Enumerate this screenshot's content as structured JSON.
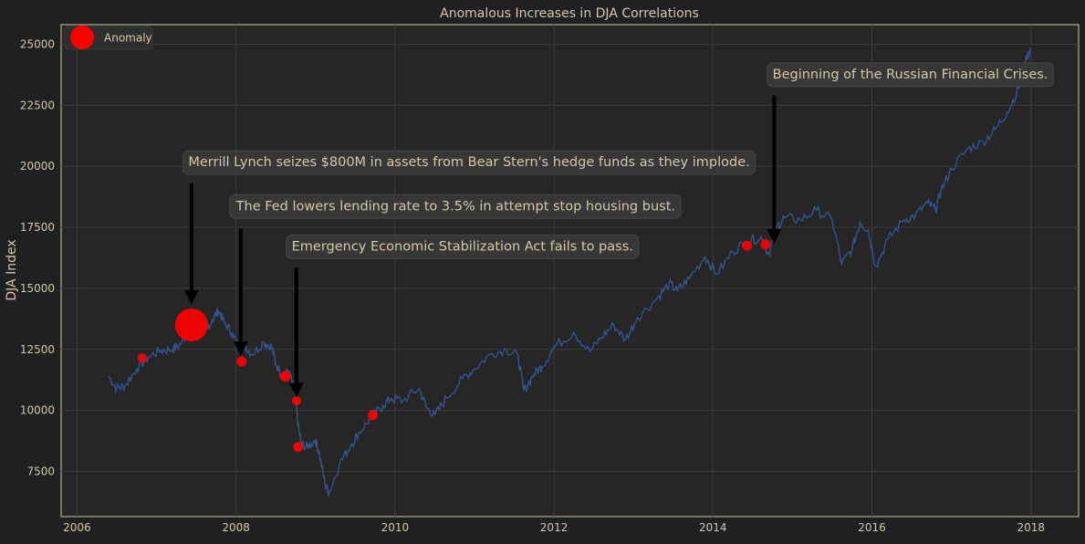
{
  "chart_data": {
    "type": "line",
    "title": "Anomalous Increases in DJA Correlations",
    "xlabel": "",
    "ylabel": "DJA Index",
    "xlim": [
      2005.8,
      2018.6
    ],
    "ylim": [
      5650,
      25800
    ],
    "x_ticks": [
      2006,
      2008,
      2010,
      2012,
      2014,
      2016,
      2018
    ],
    "y_ticks": [
      7500,
      10000,
      12500,
      15000,
      17500,
      20000,
      22500,
      25000
    ],
    "grid": true,
    "legend": {
      "position": "top-left",
      "entries": [
        "Anomaly"
      ]
    },
    "colors": {
      "background": "#1e2022",
      "plot_area": "#262626",
      "line": "#34538f",
      "anomaly": "#ff0000",
      "arrow": "#000000",
      "text": "#d8c7a8",
      "axis": "#d6c49f"
    },
    "series": [
      {
        "values": [
          [
            2006.4,
            11400
          ],
          [
            2006.5,
            10900
          ],
          [
            2006.6,
            11000
          ],
          [
            2006.75,
            11700
          ],
          [
            2006.9,
            12200
          ],
          [
            2007.05,
            12450
          ],
          [
            2007.2,
            12500
          ],
          [
            2007.3,
            12700
          ],
          [
            2007.4,
            13300
          ],
          [
            2007.5,
            13800
          ],
          [
            2007.55,
            13300
          ],
          [
            2007.6,
            13200
          ],
          [
            2007.7,
            13700
          ],
          [
            2007.78,
            14100
          ],
          [
            2007.85,
            13600
          ],
          [
            2007.95,
            13200
          ],
          [
            2008.05,
            12400
          ],
          [
            2008.1,
            12700
          ],
          [
            2008.2,
            12300
          ],
          [
            2008.35,
            12800
          ],
          [
            2008.45,
            12600
          ],
          [
            2008.5,
            11900
          ],
          [
            2008.6,
            11400
          ],
          [
            2008.65,
            11600
          ],
          [
            2008.7,
            11250
          ],
          [
            2008.75,
            10400
          ],
          [
            2008.78,
            9400
          ],
          [
            2008.82,
            8600
          ],
          [
            2008.9,
            8500
          ],
          [
            2009.0,
            8800
          ],
          [
            2009.05,
            8200
          ],
          [
            2009.12,
            7000
          ],
          [
            2009.17,
            6600
          ],
          [
            2009.3,
            7800
          ],
          [
            2009.45,
            8600
          ],
          [
            2009.55,
            9100
          ],
          [
            2009.7,
            9700
          ],
          [
            2009.85,
            10200
          ],
          [
            2009.95,
            10500
          ],
          [
            2010.1,
            10400
          ],
          [
            2010.3,
            10900
          ],
          [
            2010.4,
            10100
          ],
          [
            2010.5,
            9800
          ],
          [
            2010.65,
            10500
          ],
          [
            2010.85,
            11300
          ],
          [
            2011.0,
            11700
          ],
          [
            2011.2,
            12300
          ],
          [
            2011.4,
            12500
          ],
          [
            2011.55,
            12200
          ],
          [
            2011.62,
            10800
          ],
          [
            2011.75,
            11500
          ],
          [
            2011.85,
            11800
          ],
          [
            2012.0,
            12600
          ],
          [
            2012.25,
            13200
          ],
          [
            2012.45,
            12400
          ],
          [
            2012.6,
            13000
          ],
          [
            2012.75,
            13500
          ],
          [
            2012.9,
            12900
          ],
          [
            2013.05,
            13800
          ],
          [
            2013.3,
            14600
          ],
          [
            2013.45,
            15200
          ],
          [
            2013.55,
            14900
          ],
          [
            2013.7,
            15400
          ],
          [
            2013.9,
            16300
          ],
          [
            2014.05,
            15600
          ],
          [
            2014.25,
            16500
          ],
          [
            2014.4,
            16900
          ],
          [
            2014.6,
            17100
          ],
          [
            2014.7,
            16400
          ],
          [
            2014.8,
            17500
          ],
          [
            2014.9,
            17900
          ],
          [
            2015.1,
            17800
          ],
          [
            2015.3,
            18200
          ],
          [
            2015.5,
            17800
          ],
          [
            2015.62,
            16000
          ],
          [
            2015.75,
            16600
          ],
          [
            2015.85,
            17700
          ],
          [
            2015.95,
            17400
          ],
          [
            2016.05,
            15900
          ],
          [
            2016.2,
            17000
          ],
          [
            2016.4,
            17800
          ],
          [
            2016.55,
            18000
          ],
          [
            2016.7,
            18500
          ],
          [
            2016.8,
            18200
          ],
          [
            2016.87,
            19000
          ],
          [
            2017.0,
            19900
          ],
          [
            2017.2,
            20700
          ],
          [
            2017.4,
            21000
          ],
          [
            2017.55,
            21500
          ],
          [
            2017.7,
            22200
          ],
          [
            2017.85,
            23200
          ],
          [
            2017.95,
            24500
          ],
          [
            2018.0,
            24800
          ]
        ]
      }
    ],
    "anomalies": [
      {
        "x": 2006.82,
        "y": 12150,
        "size": 8
      },
      {
        "x": 2007.44,
        "y": 13500,
        "size": 34
      },
      {
        "x": 2008.07,
        "y": 12000,
        "size": 9
      },
      {
        "x": 2008.62,
        "y": 11400,
        "size": 10
      },
      {
        "x": 2008.76,
        "y": 10400,
        "size": 8
      },
      {
        "x": 2008.78,
        "y": 8500,
        "size": 9
      },
      {
        "x": 2009.72,
        "y": 9800,
        "size": 9
      },
      {
        "x": 2014.43,
        "y": 16750,
        "size": 9
      },
      {
        "x": 2014.66,
        "y": 16800,
        "size": 9
      }
    ],
    "annotations": [
      {
        "text": "Merrill Lynch seizes $800M in assets from Bear Stern's hedge funds as they implode.",
        "text_x": 2007.4,
        "text_y": 20000,
        "arrow_x": 2007.44,
        "arrow_from": 19300,
        "arrow_to": 14600
      },
      {
        "text": "The Fed lowers lending rate to 3.5% in attempt stop housing bust.",
        "text_x": 2008.0,
        "text_y": 18200,
        "arrow_x": 2008.06,
        "arrow_from": 17450,
        "arrow_to": 12500
      },
      {
        "text": "Emergency Economic Stabilization Act fails to pass.",
        "text_x": 2008.7,
        "text_y": 16550,
        "arrow_x": 2008.76,
        "arrow_from": 15850,
        "arrow_to": 10800
      },
      {
        "text": "Beginning of the Russian Financial Crises.",
        "text_x": 2014.75,
        "text_y": 23600,
        "arrow_x": 2014.77,
        "arrow_from": 22900,
        "arrow_to": 17100
      }
    ]
  }
}
